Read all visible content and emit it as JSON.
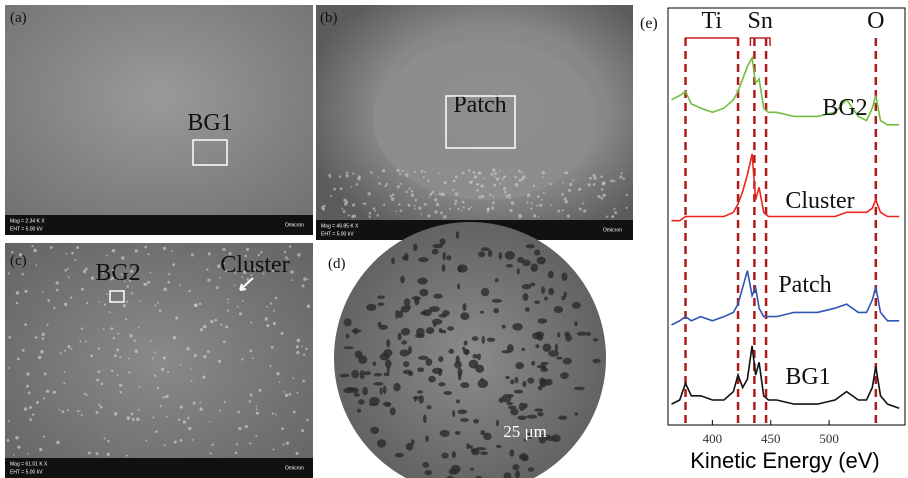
{
  "panels": {
    "a": {
      "label": "(a)",
      "box": "BG1",
      "mag": "Mag = 2.34 K X",
      "eht": "EHT = 5.00 kV",
      "brand": "Omicron"
    },
    "b": {
      "label": "(b)",
      "box": "Patch",
      "mag": "Mag = 46.85 K X",
      "eht": "EHT = 5.00 kV",
      "brand": "Omicron"
    },
    "c": {
      "label": "(c)",
      "box": "BG2",
      "arrow": "Cluster",
      "mag": "Mag = 61.01 K X",
      "eht": "EHT = 5.00 kV",
      "brand": "Omicron"
    },
    "d": {
      "label": "(d)",
      "scale": "25 μm"
    }
  },
  "chart_data": {
    "type": "line",
    "panel_label": "(e)",
    "xlabel": "Kinetic Energy (eV)",
    "x": [
      365,
      372,
      377,
      382,
      390,
      400,
      410,
      418,
      422,
      426,
      430,
      434,
      437,
      440,
      444,
      448,
      455,
      470,
      490,
      505,
      515,
      525,
      532,
      537,
      540,
      544,
      550,
      560
    ],
    "series": [
      {
        "name": "BG2",
        "color": "#6fbf3f",
        "values": [
          78,
          79,
          80,
          77,
          76,
          75,
          76,
          78,
          80,
          83,
          86,
          88,
          82,
          83,
          76,
          75,
          75,
          74,
          74,
          75,
          78,
          74,
          73,
          76,
          79,
          73,
          72,
          72
        ]
      },
      {
        "name": "Cluster",
        "color": "#e8261c",
        "values": [
          49,
          49,
          50,
          50,
          50,
          50,
          50,
          51,
          53,
          56,
          60,
          65,
          54,
          57,
          51,
          50,
          50,
          50,
          50,
          50,
          51,
          51,
          51,
          52,
          54,
          51,
          50,
          50
        ]
      },
      {
        "name": "Patch",
        "color": "#2f55b5",
        "values": [
          24,
          25,
          26,
          25,
          26,
          25,
          26,
          27,
          29,
          33,
          37,
          31,
          33,
          28,
          26,
          26,
          26,
          27,
          27,
          28,
          29,
          27,
          27,
          30,
          33,
          27,
          25,
          25
        ]
      },
      {
        "name": "BG1",
        "color": "#111111",
        "values": [
          5,
          6,
          10,
          7,
          7,
          6,
          6,
          8,
          12,
          9,
          11,
          19,
          12,
          15,
          7,
          6,
          6,
          5,
          5,
          6,
          8,
          6,
          6,
          9,
          14,
          7,
          5,
          4
        ]
      }
    ],
    "markers": [
      377,
      422,
      436,
      446,
      540
    ],
    "annotations": [
      "Ti",
      "Sn",
      "O"
    ],
    "xlim": [
      362,
      565
    ],
    "ylim": [
      0,
      100
    ],
    "xticks": [
      400,
      450,
      500
    ]
  }
}
